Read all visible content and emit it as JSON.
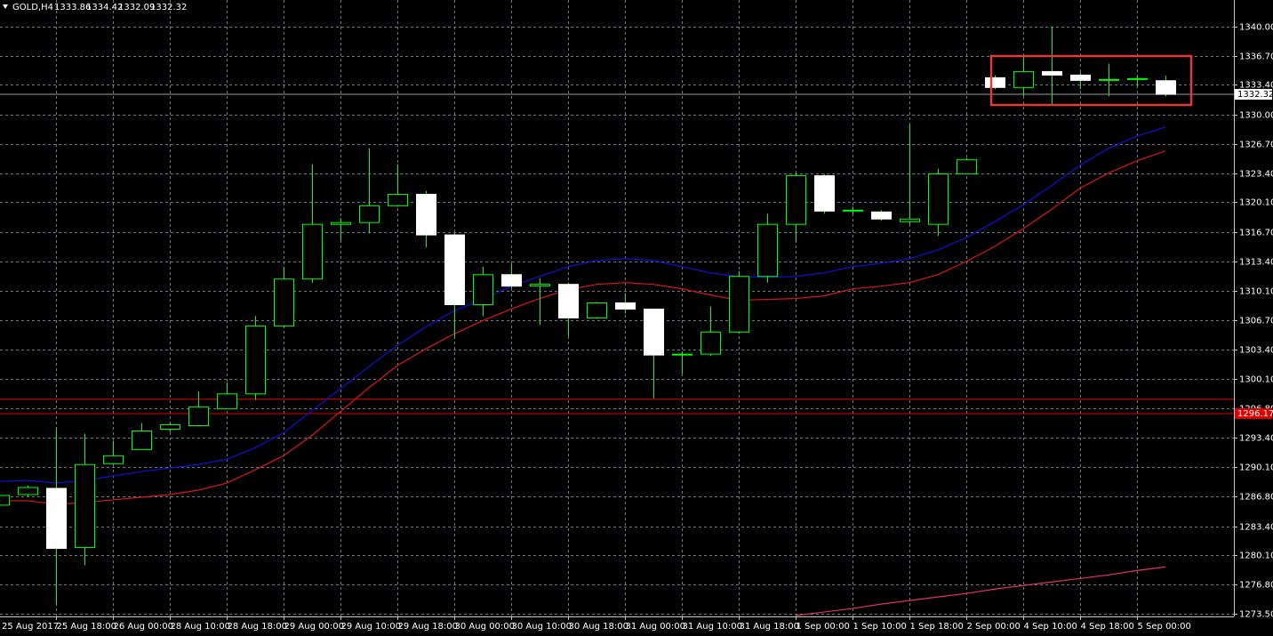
{
  "chart_data": {
    "type": "candlestick",
    "title": "GOLD,H4",
    "categories": [
      "25 Aug 2017",
      null,
      "25 Aug 18:00",
      null,
      "26 Aug 00:00",
      null,
      "28 Aug 10:00",
      null,
      "28 Aug 18:00",
      null,
      "29 Aug 00:00",
      null,
      "29 Aug 10:00",
      null,
      "29 Aug 18:00",
      null,
      "30 Aug 00:00",
      null,
      "30 Aug 10:00",
      null,
      "30 Aug 18:00",
      null,
      "31 Aug 00:00",
      null,
      "31 Aug 10:00",
      null,
      "31 Aug 18:00",
      null,
      "1 Sep 00:00",
      null,
      "1 Sep 10:00",
      null,
      "1 Sep 18:00",
      null,
      "2 Sep 00:00",
      null,
      "4 Sep 10:00",
      null,
      "4 Sep 18:00",
      null,
      "5 Sep 00:00",
      null
    ],
    "open": [
      1285.8,
      1287.0,
      1287.7,
      1281.0,
      1290.5,
      1292.1,
      1294.4,
      1294.8,
      1296.7,
      1298.4,
      1306.1,
      1311.4,
      1317.6,
      1317.8,
      1319.7,
      1321.0,
      1316.4,
      1308.5,
      1311.9,
      1310.6,
      1310.8,
      1307.0,
      1308.7,
      1308.0,
      1302.8,
      1302.9,
      1305.4,
      1311.7,
      1317.6,
      1323.1,
      1319.1,
      1319.0,
      1317.9,
      1317.6,
      1323.3,
      1334.2,
      1333.1,
      1334.9,
      1334.5,
      1333.9,
      1334.0,
      1333.86
    ],
    "high": [
      1287.2,
      1288.0,
      1294.6,
      1293.9,
      1293.1,
      1295.1,
      1295.1,
      1298.7,
      1299.7,
      1307.2,
      1312.8,
      1324.4,
      1318.3,
      1326.2,
      1324.4,
      1321.4,
      1316.6,
      1312.8,
      1313.1,
      1311.5,
      1311.0,
      1308.8,
      1309.8,
      1308.0,
      1303.2,
      1308.3,
      1312.3,
      1318.8,
      1323.4,
      1323.3,
      1319.6,
      1319.2,
      1328.9,
      1323.9,
      1325.1,
      1334.5,
      1336.7,
      1340.0,
      1334.8,
      1335.8,
      1334.4,
      1334.42
    ],
    "low": [
      1285.5,
      1286.8,
      1274.5,
      1279.0,
      1290.4,
      1292.1,
      1294.1,
      1294.8,
      1296.7,
      1297.7,
      1305.9,
      1311.0,
      1315.8,
      1316.6,
      1319.6,
      1315.0,
      1304.7,
      1307.2,
      1310.3,
      1306.2,
      1304.9,
      1306.9,
      1307.5,
      1297.9,
      1300.7,
      1302.7,
      1305.2,
      1311.0,
      1315.6,
      1318.8,
      1318.8,
      1318.0,
      1317.6,
      1316.3,
      1323.3,
      1332.9,
      1332.1,
      1331.1,
      1332.9,
      1332.1,
      1333.2,
      1332.09
    ],
    "close": [
      1286.9,
      1287.8,
      1280.9,
      1290.4,
      1291.4,
      1294.2,
      1294.9,
      1296.9,
      1298.4,
      1306.1,
      1311.4,
      1317.6,
      1317.8,
      1319.7,
      1321.0,
      1316.4,
      1308.5,
      1311.9,
      1310.6,
      1310.8,
      1307.0,
      1308.7,
      1308.0,
      1302.8,
      1302.9,
      1305.4,
      1311.7,
      1317.6,
      1323.1,
      1319.1,
      1319.2,
      1318.2,
      1318.2,
      1323.3,
      1324.9,
      1333.1,
      1334.9,
      1334.5,
      1333.9,
      1334.0,
      1334.1,
      1332.32
    ],
    "bull_color": "#000000",
    "bear_color": "#ffffff",
    "candle_line_color": "#00ff00",
    "series": [
      {
        "color": "#1010d8",
        "values": [
          1288.5,
          1288.6,
          1288.3,
          1288.6,
          1289.1,
          1289.6,
          1290.0,
          1290.4,
          1291.0,
          1292.3,
          1294.0,
          1296.5,
          1299.0,
          1301.5,
          1303.9,
          1306.0,
          1307.8,
          1309.1,
          1310.6,
          1311.7,
          1312.8,
          1313.5,
          1313.7,
          1313.5,
          1312.8,
          1312.1,
          1311.7,
          1311.6,
          1311.7,
          1312.1,
          1312.8,
          1313.2,
          1313.7,
          1314.7,
          1316.1,
          1317.9,
          1319.8,
          1322.0,
          1324.3,
          1326.2,
          1327.6,
          1328.6
        ]
      },
      {
        "color": "#d81818",
        "values": [
          1286.3,
          1286.3,
          1285.9,
          1286.1,
          1286.4,
          1286.7,
          1287.0,
          1287.5,
          1288.3,
          1289.8,
          1291.4,
          1293.7,
          1296.4,
          1299.1,
          1301.6,
          1303.5,
          1305.2,
          1306.7,
          1308.0,
          1309.2,
          1310.2,
          1310.8,
          1311.0,
          1310.8,
          1310.3,
          1309.6,
          1309.0,
          1309.1,
          1309.2,
          1309.5,
          1310.3,
          1310.6,
          1311.0,
          1311.9,
          1313.4,
          1315.1,
          1317.1,
          1319.3,
          1321.7,
          1323.4,
          1324.8,
          1325.9
        ]
      },
      {
        "color": "#e0306a",
        "values": [
          null,
          null,
          null,
          null,
          null,
          null,
          null,
          null,
          null,
          null,
          null,
          null,
          null,
          null,
          null,
          null,
          null,
          null,
          null,
          null,
          null,
          null,
          null,
          null,
          null,
          null,
          null,
          null,
          1273.3,
          1273.7,
          1274.1,
          1274.6,
          1275.0,
          1275.4,
          1275.8,
          1276.3,
          1276.7,
          1277.1,
          1277.5,
          1277.9,
          1278.4,
          1278.8
        ]
      }
    ],
    "level_line": 1297.8,
    "price_line": 1296.17,
    "level_color": "#e00000",
    "ylim": [
      1273.2,
      1343.0
    ],
    "yticks": [
      {
        "value": 1340.0,
        "label": "1340.00"
      },
      {
        "value": 1336.7,
        "label": "1336.70"
      },
      {
        "value": 1333.4,
        "label": "1333.40"
      },
      {
        "value": 1330.0,
        "label": "1330.00"
      },
      {
        "value": 1326.7,
        "label": "1326.70"
      },
      {
        "value": 1323.4,
        "label": "1323.40"
      },
      {
        "value": 1320.1,
        "label": "1320.10"
      },
      {
        "value": 1316.7,
        "label": "1316.70"
      },
      {
        "value": 1313.4,
        "label": "1313.40"
      },
      {
        "value": 1310.1,
        "label": "1310.10"
      },
      {
        "value": 1306.7,
        "label": "1306.70"
      },
      {
        "value": 1303.4,
        "label": "1303.40"
      },
      {
        "value": 1300.1,
        "label": "1300.10"
      },
      {
        "value": 1296.8,
        "label": "1296.80"
      },
      {
        "value": 1293.4,
        "label": "1293.40"
      },
      {
        "value": 1290.1,
        "label": "1290.10"
      },
      {
        "value": 1286.8,
        "label": "1286.80"
      },
      {
        "value": 1283.4,
        "label": "1283.40"
      },
      {
        "value": 1280.1,
        "label": "1280.10"
      },
      {
        "value": 1276.8,
        "label": "1276.80"
      },
      {
        "value": 1273.5,
        "label": "1273.50"
      }
    ],
    "grid": true
  }
}
